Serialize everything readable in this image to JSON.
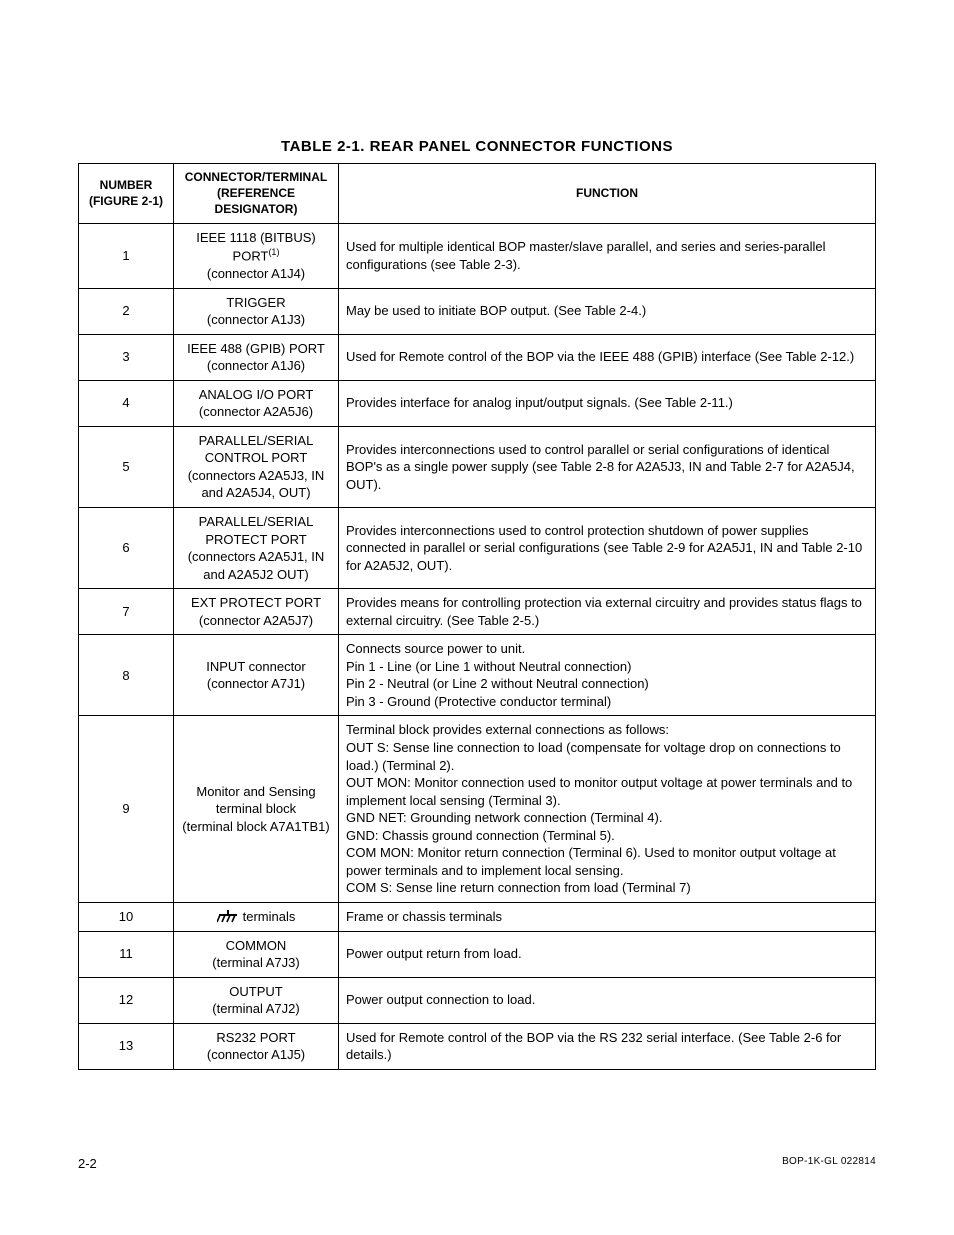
{
  "title": "TABLE 2-1.  REAR PANEL CONNECTOR FUNCTIONS",
  "columns": {
    "number": "NUMBER (FIGURE 2-1)",
    "connector": "CONNECTOR/TERMINAL (REFERENCE DESIGNATOR)",
    "function": "FUNCTION"
  },
  "rows": [
    {
      "num": "1",
      "conn_main": "IEEE 1118 (BITBUS) PORT",
      "conn_sup": "(1)",
      "conn_sub": "(connector A1J4)",
      "func": "Used for multiple identical BOP master/slave parallel, and series and series-parallel configurations (see Table 2-3)."
    },
    {
      "num": "2",
      "conn_main": "TRIGGER",
      "conn_sub": "(connector A1J3)",
      "func": "May be used to initiate BOP output. (See Table 2-4.)"
    },
    {
      "num": "3",
      "conn_main": "IEEE 488 (GPIB) PORT",
      "conn_sub": "(connector A1J6)",
      "func": "Used for Remote control of the BOP via the IEEE 488 (GPIB) interface (See Table 2-12.)"
    },
    {
      "num": "4",
      "conn_main": "ANALOG I/O PORT",
      "conn_sub": "(connector A2A5J6)",
      "func": "Provides interface for analog input/output signals. (See Table 2-11.)"
    },
    {
      "num": "5",
      "conn_main": "PARALLEL/SERIAL CONTROL PORT",
      "conn_sub": "(connectors A2A5J3, IN and A2A5J4, OUT)",
      "func": "Provides interconnections used to control parallel or serial configurations of identical BOP's as a single power supply (see Table 2-8 for A2A5J3, IN and Table 2-7 for A2A5J4, OUT)."
    },
    {
      "num": "6",
      "conn_main": "PARALLEL/SERIAL PROTECT PORT",
      "conn_sub": "(connectors A2A5J1, IN and A2A5J2 OUT)",
      "func": "Provides interconnections used to control protection shutdown of power supplies connected in parallel or serial configurations (see Table 2-9 for A2A5J1, IN and Table 2-10 for A2A5J2, OUT)."
    },
    {
      "num": "7",
      "conn_main": "EXT PROTECT PORT",
      "conn_sub": "(connector A2A5J7)",
      "func": "Provides means for controlling protection via external circuitry and provides status flags to external circuitry. (See Table 2-5.)"
    },
    {
      "num": "8",
      "conn_main": "INPUT connector",
      "conn_sub": "(connector A7J1)",
      "func_lines": [
        "Connects source power to unit.",
        "Pin 1 - Line (or Line 1 without Neutral connection)",
        "Pin 2 - Neutral (or Line 2 without Neutral connection)",
        "Pin 3 - Ground (Protective conductor terminal)"
      ]
    },
    {
      "num": "9",
      "conn_main": "Monitor and Sensing terminal block",
      "conn_sub": "(terminal block A7A1TB1)",
      "func_lines": [
        "Terminal block provides external connections as follows:",
        "OUT S: Sense line connection to load (compensate for voltage drop on connections to load.) (Terminal 2).",
        "OUT MON: Monitor connection used to monitor output voltage at power terminals and to implement local sensing (Terminal 3).",
        "GND NET: Grounding network connection (Terminal 4).",
        "GND: Chassis ground connection (Terminal 5).",
        "COM MON: Monitor return connection (Terminal 6). Used to monitor output voltage at power terminals and to implement local sensing.",
        "COM S: Sense line return connection from load (Terminal 7)"
      ]
    },
    {
      "num": "10",
      "conn_icon": "ground",
      "conn_main": "terminals",
      "func": "Frame or chassis terminals"
    },
    {
      "num": "11",
      "conn_main": "COMMON",
      "conn_sub": "(terminal A7J3)",
      "func": "Power output return from load."
    },
    {
      "num": "12",
      "conn_main": "OUTPUT",
      "conn_sub": "(terminal A7J2)",
      "func": "Power output connection to load."
    },
    {
      "num": "13",
      "conn_main": "RS232 PORT",
      "conn_sub": "(connector A1J5)",
      "func": "Used for Remote control of the BOP via the RS 232 serial interface. (See Table 2-6 for details.)"
    }
  ],
  "footer": {
    "page": "2-2",
    "doc": "BOP-1K-GL 022814"
  }
}
